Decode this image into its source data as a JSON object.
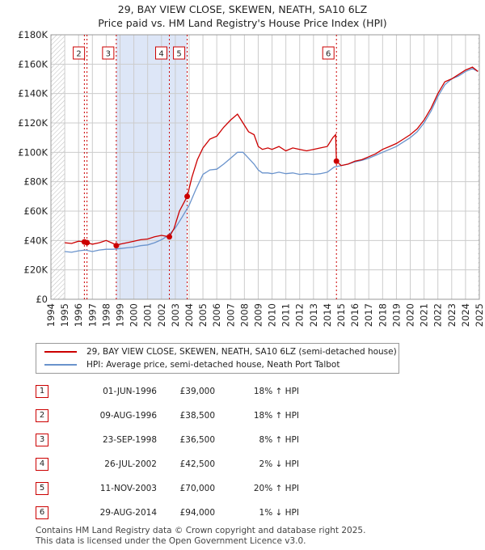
{
  "title_line1": "29, BAY VIEW CLOSE, SKEWEN, NEATH, SA10 6LZ",
  "title_line2": "Price paid vs. HM Land Registry's House Price Index (HPI)",
  "colors": {
    "property": "#cc0000",
    "hpi": "#6a93cc",
    "shade": "#dde6f7",
    "grid": "#cccccc"
  },
  "legend": {
    "property": "29, BAY VIEW CLOSE, SKEWEN, NEATH, SA10 6LZ (semi-detached house)",
    "hpi": "HPI: Average price, semi-detached house, Neath Port Talbot"
  },
  "transactions": [
    {
      "num": "1",
      "date": "01-JUN-1996",
      "price": "£39,000",
      "hpi": "18% ↑ HPI"
    },
    {
      "num": "2",
      "date": "09-AUG-1996",
      "price": "£38,500",
      "hpi": "18% ↑ HPI"
    },
    {
      "num": "3",
      "date": "23-SEP-1998",
      "price": "£36,500",
      "hpi": "8% ↑ HPI"
    },
    {
      "num": "4",
      "date": "26-JUL-2002",
      "price": "£42,500",
      "hpi": "2% ↓ HPI"
    },
    {
      "num": "5",
      "date": "11-NOV-2003",
      "price": "£70,000",
      "hpi": "20% ↑ HPI"
    },
    {
      "num": "6",
      "date": "29-AUG-2014",
      "price": "£94,000",
      "hpi": "1% ↓ HPI"
    }
  ],
  "footer_line1": "Contains HM Land Registry data © Crown copyright and database right 2025.",
  "footer_line2": "This data is licensed under the Open Government Licence v3.0.",
  "chart_data": {
    "type": "line",
    "xlim": [
      1994,
      2025
    ],
    "ylim": [
      0,
      180000
    ],
    "yticks": [
      0,
      20000,
      40000,
      60000,
      80000,
      100000,
      120000,
      140000,
      160000,
      180000
    ],
    "ytick_labels": [
      "£0",
      "£20K",
      "£40K",
      "£60K",
      "£80K",
      "£100K",
      "£120K",
      "£140K",
      "£160K",
      "£180K"
    ],
    "xticks": [
      1994,
      1995,
      1996,
      1997,
      1998,
      1999,
      2000,
      2001,
      2002,
      2003,
      2004,
      2005,
      2006,
      2007,
      2008,
      2009,
      2010,
      2011,
      2012,
      2013,
      2014,
      2015,
      2016,
      2017,
      2018,
      2019,
      2020,
      2021,
      2022,
      2023,
      2024,
      2025
    ],
    "hatch_regions": [
      [
        1994,
        1995
      ],
      [
        2024.9,
        2025
      ]
    ],
    "shaded_regions": [
      [
        1998.73,
        2003.86
      ]
    ],
    "sales": [
      {
        "label": "1",
        "x": 1996.42,
        "y": 39000,
        "box": false
      },
      {
        "label": "2",
        "x": 1996.61,
        "y": 38500,
        "box": true
      },
      {
        "label": "3",
        "x": 1998.73,
        "y": 36500,
        "box": true
      },
      {
        "label": "4",
        "x": 2002.57,
        "y": 42500,
        "box": true
      },
      {
        "label": "5",
        "x": 2003.86,
        "y": 70000,
        "box": true
      },
      {
        "label": "6",
        "x": 2014.66,
        "y": 94000,
        "box": true
      }
    ],
    "series": [
      {
        "name": "29, BAY VIEW CLOSE, SKEWEN, NEATH, SA10 6LZ (semi-detached house)",
        "color": "#cc0000",
        "x": [
          1995,
          1995.5,
          1996,
          1996.42,
          1996.61,
          1997,
          1997.5,
          1998,
          1998.5,
          1998.73,
          1999,
          1999.5,
          2000,
          2000.5,
          2001,
          2001.5,
          2002,
          2002.57,
          2002.9,
          2003.3,
          2003.86,
          2004.2,
          2004.6,
          2005,
          2005.5,
          2006,
          2006.5,
          2007,
          2007.5,
          2007.9,
          2008.3,
          2008.7,
          2009.0,
          2009.3,
          2009.7,
          2010,
          2010.5,
          2011,
          2011.5,
          2012,
          2012.5,
          2013,
          2013.5,
          2014,
          2014.4,
          2014.6,
          2014.66,
          2015,
          2015.5,
          2016,
          2016.5,
          2017,
          2017.5,
          2018,
          2018.5,
          2019,
          2019.5,
          2020,
          2020.5,
          2021,
          2021.5,
          2022,
          2022.5,
          2023,
          2023.5,
          2024,
          2024.5,
          2024.9
        ],
        "y": [
          38500,
          38000,
          39500,
          39000,
          38500,
          37500,
          38500,
          40000,
          38000,
          36500,
          37500,
          38500,
          39500,
          40500,
          41000,
          42500,
          43500,
          42500,
          48000,
          60000,
          70000,
          83000,
          95000,
          103000,
          109000,
          111000,
          117000,
          122000,
          126000,
          120000,
          114000,
          112000,
          104000,
          102000,
          103000,
          102000,
          104000,
          101000,
          103000,
          102000,
          101000,
          102000,
          103000,
          104000,
          110000,
          112000,
          94000,
          91000,
          92000,
          94000,
          95000,
          97000,
          99000,
          102000,
          104000,
          106000,
          109000,
          112000,
          116000,
          122000,
          130000,
          140000,
          148000,
          150000,
          153000,
          156000,
          158000,
          155000
        ]
      },
      {
        "name": "HPI: Average price, semi-detached house, Neath Port Talbot",
        "color": "#6a93cc",
        "x": [
          1995,
          1995.5,
          1996,
          1996.5,
          1997,
          1997.5,
          1998,
          1998.5,
          1999,
          1999.5,
          2000,
          2000.5,
          2001,
          2001.5,
          2002,
          2002.5,
          2003,
          2003.5,
          2004,
          2004.5,
          2005,
          2005.5,
          2006,
          2006.5,
          2007,
          2007.5,
          2007.9,
          2008.3,
          2008.7,
          2009.0,
          2009.3,
          2009.7,
          2010,
          2010.5,
          2011,
          2011.5,
          2012,
          2012.5,
          2013,
          2013.5,
          2014,
          2014.5,
          2015,
          2015.5,
          2016,
          2016.5,
          2017,
          2017.5,
          2018,
          2018.5,
          2019,
          2019.5,
          2020,
          2020.5,
          2021,
          2021.5,
          2022,
          2022.5,
          2023,
          2023.5,
          2024,
          2024.5,
          2024.9
        ],
        "y": [
          32500,
          32000,
          33000,
          33500,
          32500,
          33500,
          34000,
          34000,
          34500,
          35000,
          35500,
          36500,
          37000,
          38500,
          40500,
          43500,
          48500,
          56000,
          64000,
          75000,
          85000,
          88000,
          88500,
          92000,
          96000,
          100000,
          100000,
          96000,
          92000,
          88000,
          86000,
          86000,
          85500,
          86500,
          85500,
          86000,
          85000,
          85500,
          85000,
          85500,
          86500,
          90000,
          91000,
          92000,
          93500,
          94500,
          96000,
          98000,
          100000,
          102000,
          104000,
          107000,
          110000,
          114000,
          120000,
          128000,
          138000,
          146000,
          150000,
          152000,
          155000,
          157000,
          155000
        ]
      }
    ]
  }
}
